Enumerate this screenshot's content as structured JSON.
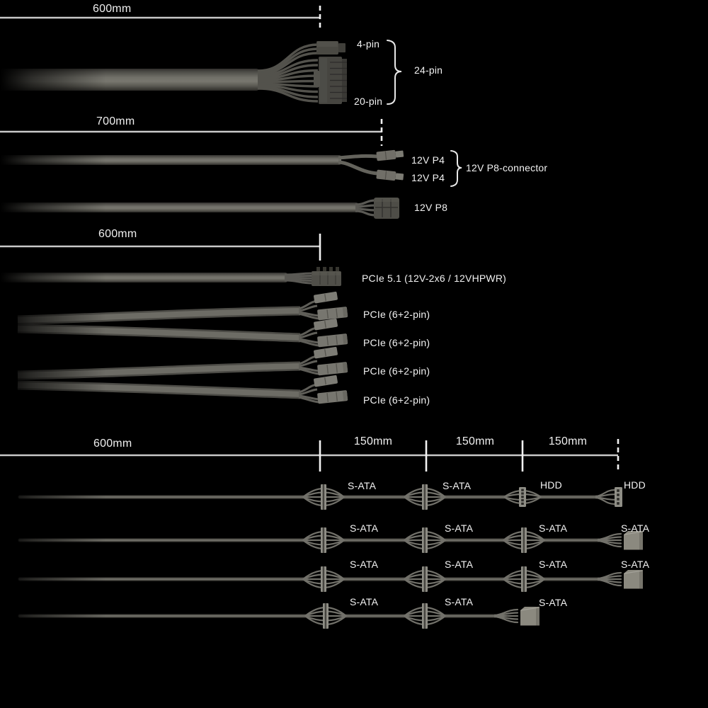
{
  "diagram": {
    "title": "psu-cable-length-diagram",
    "background_color": "#000000",
    "text_color": "#f2f2f2",
    "measure_line_color": "#c9c9c9",
    "cable_color": "#6e6d67",
    "connector_color": "#8f8e86"
  },
  "atx": {
    "length_label": "600mm",
    "pin4": "4-pin",
    "pin24": "24-pin",
    "pin20": "20-pin"
  },
  "cpu": {
    "length_label": "700mm",
    "p4_top": "12V P4",
    "p4_bottom": "12V P4",
    "p8_group": "12V P8-connector",
    "p8": "12V P8"
  },
  "pcie": {
    "length_label": "600mm",
    "gen5": "PCIe 5.1 (12V-2x6 / 12VHPWR)",
    "plugs": [
      "PCIe (6+2-pin)",
      "PCIe (6+2-pin)",
      "PCIe (6+2-pin)",
      "PCIe (6+2-pin)"
    ]
  },
  "sata": {
    "length_labels": [
      "600mm",
      "150mm",
      "150mm",
      "150mm"
    ],
    "rows": [
      [
        "S-ATA",
        "S-ATA",
        "HDD",
        "HDD"
      ],
      [
        "S-ATA",
        "S-ATA",
        "S-ATA",
        "S-ATA"
      ],
      [
        "S-ATA",
        "S-ATA",
        "S-ATA",
        "S-ATA"
      ],
      [
        "S-ATA",
        "S-ATA",
        "S-ATA"
      ]
    ]
  }
}
